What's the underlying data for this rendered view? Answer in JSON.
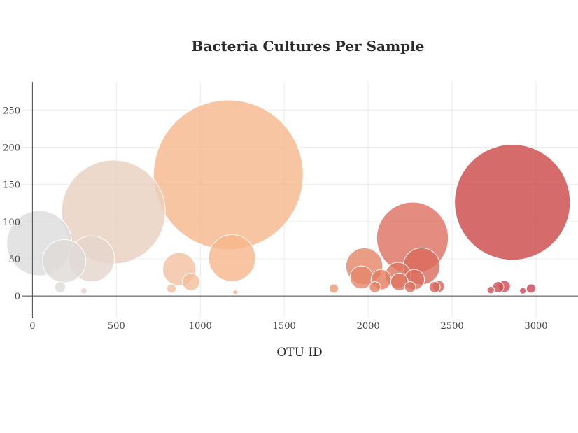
{
  "chart_data": {
    "type": "scatter",
    "title": "Bacteria Cultures Per Sample",
    "xlabel": "OTU ID",
    "ylabel": "",
    "xlim": [
      -60,
      3250
    ],
    "ylim": [
      -30,
      288
    ],
    "x_ticks": [
      0,
      500,
      1000,
      1500,
      2000,
      2500,
      3000
    ],
    "y_ticks": [
      0,
      50,
      100,
      150,
      200,
      250
    ],
    "legend": "none",
    "grid": true,
    "colorscale": "Earth (light grey to red by OTU ID)",
    "points": [
      {
        "x": 41,
        "y": 71,
        "size": 71,
        "color": "#dcdcdc"
      },
      {
        "x": 165,
        "y": 12,
        "size": 12,
        "color": "#dedbd9"
      },
      {
        "x": 189,
        "y": 47,
        "size": 47,
        "color": "#dfdad6"
      },
      {
        "x": 307,
        "y": 7,
        "size": 7,
        "color": "#e3d6ce"
      },
      {
        "x": 352,
        "y": 50,
        "size": 50,
        "color": "#e3d5cc"
      },
      {
        "x": 482,
        "y": 113,
        "size": 113,
        "color": "#e8d0bf"
      },
      {
        "x": 828,
        "y": 10,
        "size": 10,
        "color": "#f2c1a3"
      },
      {
        "x": 874,
        "y": 36,
        "size": 36,
        "color": "#f3c09f"
      },
      {
        "x": 944,
        "y": 19,
        "size": 19,
        "color": "#f4bd9a"
      },
      {
        "x": 1167,
        "y": 163,
        "size": 163,
        "color": "#f6b68b"
      },
      {
        "x": 1189,
        "y": 51,
        "size": 51,
        "color": "#f6b58a"
      },
      {
        "x": 1208,
        "y": 5,
        "size": 5,
        "color": "#f6b489"
      },
      {
        "x": 1795,
        "y": 10,
        "size": 10,
        "color": "#ec9a72"
      },
      {
        "x": 1977,
        "y": 40,
        "size": 40,
        "color": "#e58466"
      },
      {
        "x": 1960,
        "y": 25,
        "size": 25,
        "color": "#e5876a"
      },
      {
        "x": 2040,
        "y": 12,
        "size": 12,
        "color": "#e27e61"
      },
      {
        "x": 2077,
        "y": 22,
        "size": 22,
        "color": "#e17c60"
      },
      {
        "x": 2178,
        "y": 28,
        "size": 28,
        "color": "#de7560"
      },
      {
        "x": 2186,
        "y": 19,
        "size": 19,
        "color": "#de7561"
      },
      {
        "x": 2264,
        "y": 78,
        "size": 78,
        "color": "#dc6f5f"
      },
      {
        "x": 2250,
        "y": 12,
        "size": 12,
        "color": "#dc705f"
      },
      {
        "x": 2275,
        "y": 22,
        "size": 22,
        "color": "#db6e5e"
      },
      {
        "x": 2318,
        "y": 40,
        "size": 40,
        "color": "#da6a5c"
      },
      {
        "x": 2396,
        "y": 12,
        "size": 12,
        "color": "#d8655b"
      },
      {
        "x": 2419,
        "y": 13,
        "size": 13,
        "color": "#d7635a"
      },
      {
        "x": 2730,
        "y": 8,
        "size": 8,
        "color": "#cf4f55"
      },
      {
        "x": 2775,
        "y": 12,
        "size": 12,
        "color": "#ce4c55"
      },
      {
        "x": 2811,
        "y": 13,
        "size": 13,
        "color": "#cd4a55"
      },
      {
        "x": 2859,
        "y": 126,
        "size": 126,
        "color": "#cc4647"
      },
      {
        "x": 2921,
        "y": 7,
        "size": 7,
        "color": "#cb4454"
      },
      {
        "x": 2970,
        "y": 10,
        "size": 10,
        "color": "#ca4254"
      }
    ]
  }
}
